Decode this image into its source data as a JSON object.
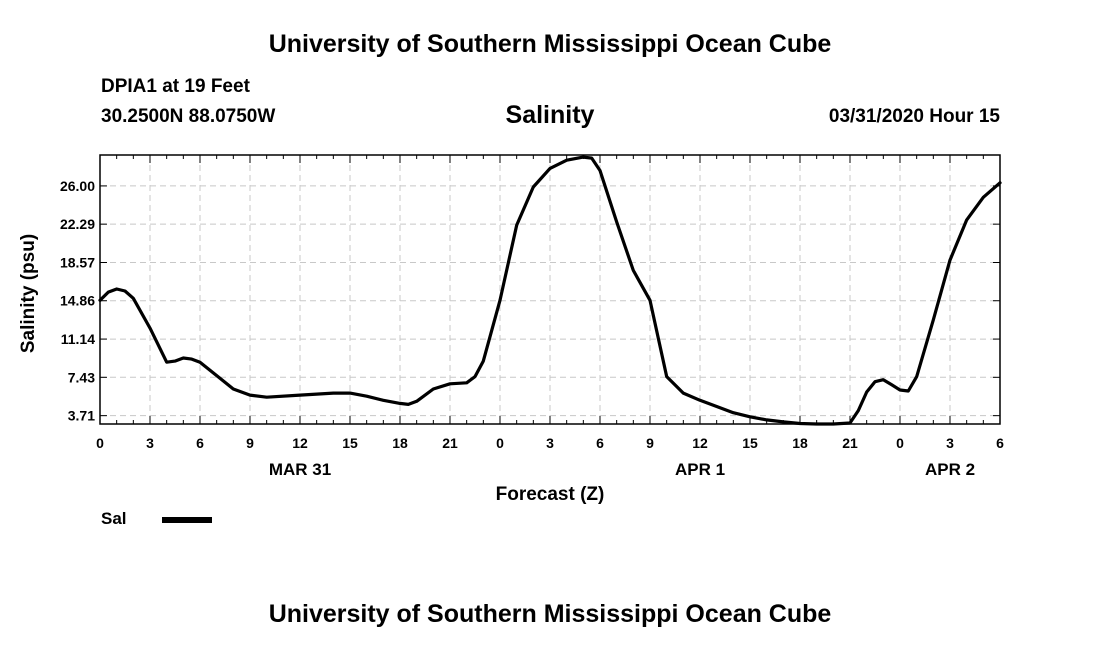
{
  "header": {
    "title_top": "University of Southern Mississippi Ocean Cube",
    "station": "DPIA1 at 19 Feet",
    "coords": "30.2500N 88.0750W",
    "variable": "Salinity",
    "timestamp": "03/31/2020 Hour 15",
    "title_bottom": "University of Southern Mississippi Ocean Cube"
  },
  "legend": {
    "label": "Sal",
    "color": "#000000"
  },
  "chart_data": {
    "type": "line",
    "title": "Salinity",
    "xlabel": "Forecast (Z)",
    "ylabel": "Salinity (psu)",
    "xlim": [
      0,
      54
    ],
    "ylim": [
      2.9,
      29.0
    ],
    "grid": true,
    "y_ticks": [
      "3.71",
      "7.43",
      "11.14",
      "14.86",
      "18.57",
      "22.29",
      "26.00"
    ],
    "y_tick_values": [
      3.71,
      7.43,
      11.14,
      14.86,
      18.57,
      22.29,
      26.0
    ],
    "x_ticks": [
      "0",
      "3",
      "6",
      "9",
      "12",
      "15",
      "18",
      "21",
      "0",
      "3",
      "6",
      "9",
      "12",
      "15",
      "18",
      "21",
      "0",
      "3",
      "6"
    ],
    "x_tick_values": [
      0,
      3,
      6,
      9,
      12,
      15,
      18,
      21,
      24,
      27,
      30,
      33,
      36,
      39,
      42,
      45,
      48,
      51,
      54
    ],
    "day_labels": [
      {
        "label": "MAR 31",
        "at": 12
      },
      {
        "label": "APR 1",
        "at": 36
      },
      {
        "label": "APR 2",
        "at": 51
      }
    ],
    "series": [
      {
        "name": "Sal",
        "x": [
          0,
          0.5,
          1,
          1.5,
          2,
          3,
          4,
          4.5,
          5,
          5.5,
          6,
          7,
          8,
          9,
          10,
          12,
          13,
          14,
          15,
          16,
          17,
          18,
          18.5,
          19,
          20,
          21,
          22,
          22.5,
          23,
          24,
          25,
          26,
          27,
          28,
          29,
          29.5,
          30,
          31,
          32,
          33,
          34,
          35,
          36,
          37,
          38,
          39,
          40,
          41,
          42,
          43,
          44,
          45,
          45.5,
          46,
          46.5,
          47,
          47.5,
          48,
          48.5,
          49,
          50,
          51,
          52,
          53,
          54
        ],
        "values": [
          14.9,
          15.7,
          16.0,
          15.8,
          15.1,
          12.2,
          8.9,
          9.0,
          9.3,
          9.2,
          8.9,
          7.6,
          6.3,
          5.7,
          5.5,
          5.7,
          5.8,
          5.9,
          5.9,
          5.6,
          5.2,
          4.9,
          4.8,
          5.1,
          6.3,
          6.8,
          6.9,
          7.5,
          9.0,
          14.9,
          22.2,
          25.9,
          27.7,
          28.5,
          28.8,
          28.7,
          27.5,
          22.5,
          17.8,
          14.9,
          7.5,
          5.9,
          5.2,
          4.6,
          4.0,
          3.6,
          3.3,
          3.1,
          2.95,
          2.9,
          2.9,
          3.0,
          4.2,
          6.0,
          7.0,
          7.2,
          6.7,
          6.2,
          6.1,
          7.5,
          13.0,
          18.8,
          22.7,
          24.9,
          26.3
        ]
      }
    ]
  }
}
